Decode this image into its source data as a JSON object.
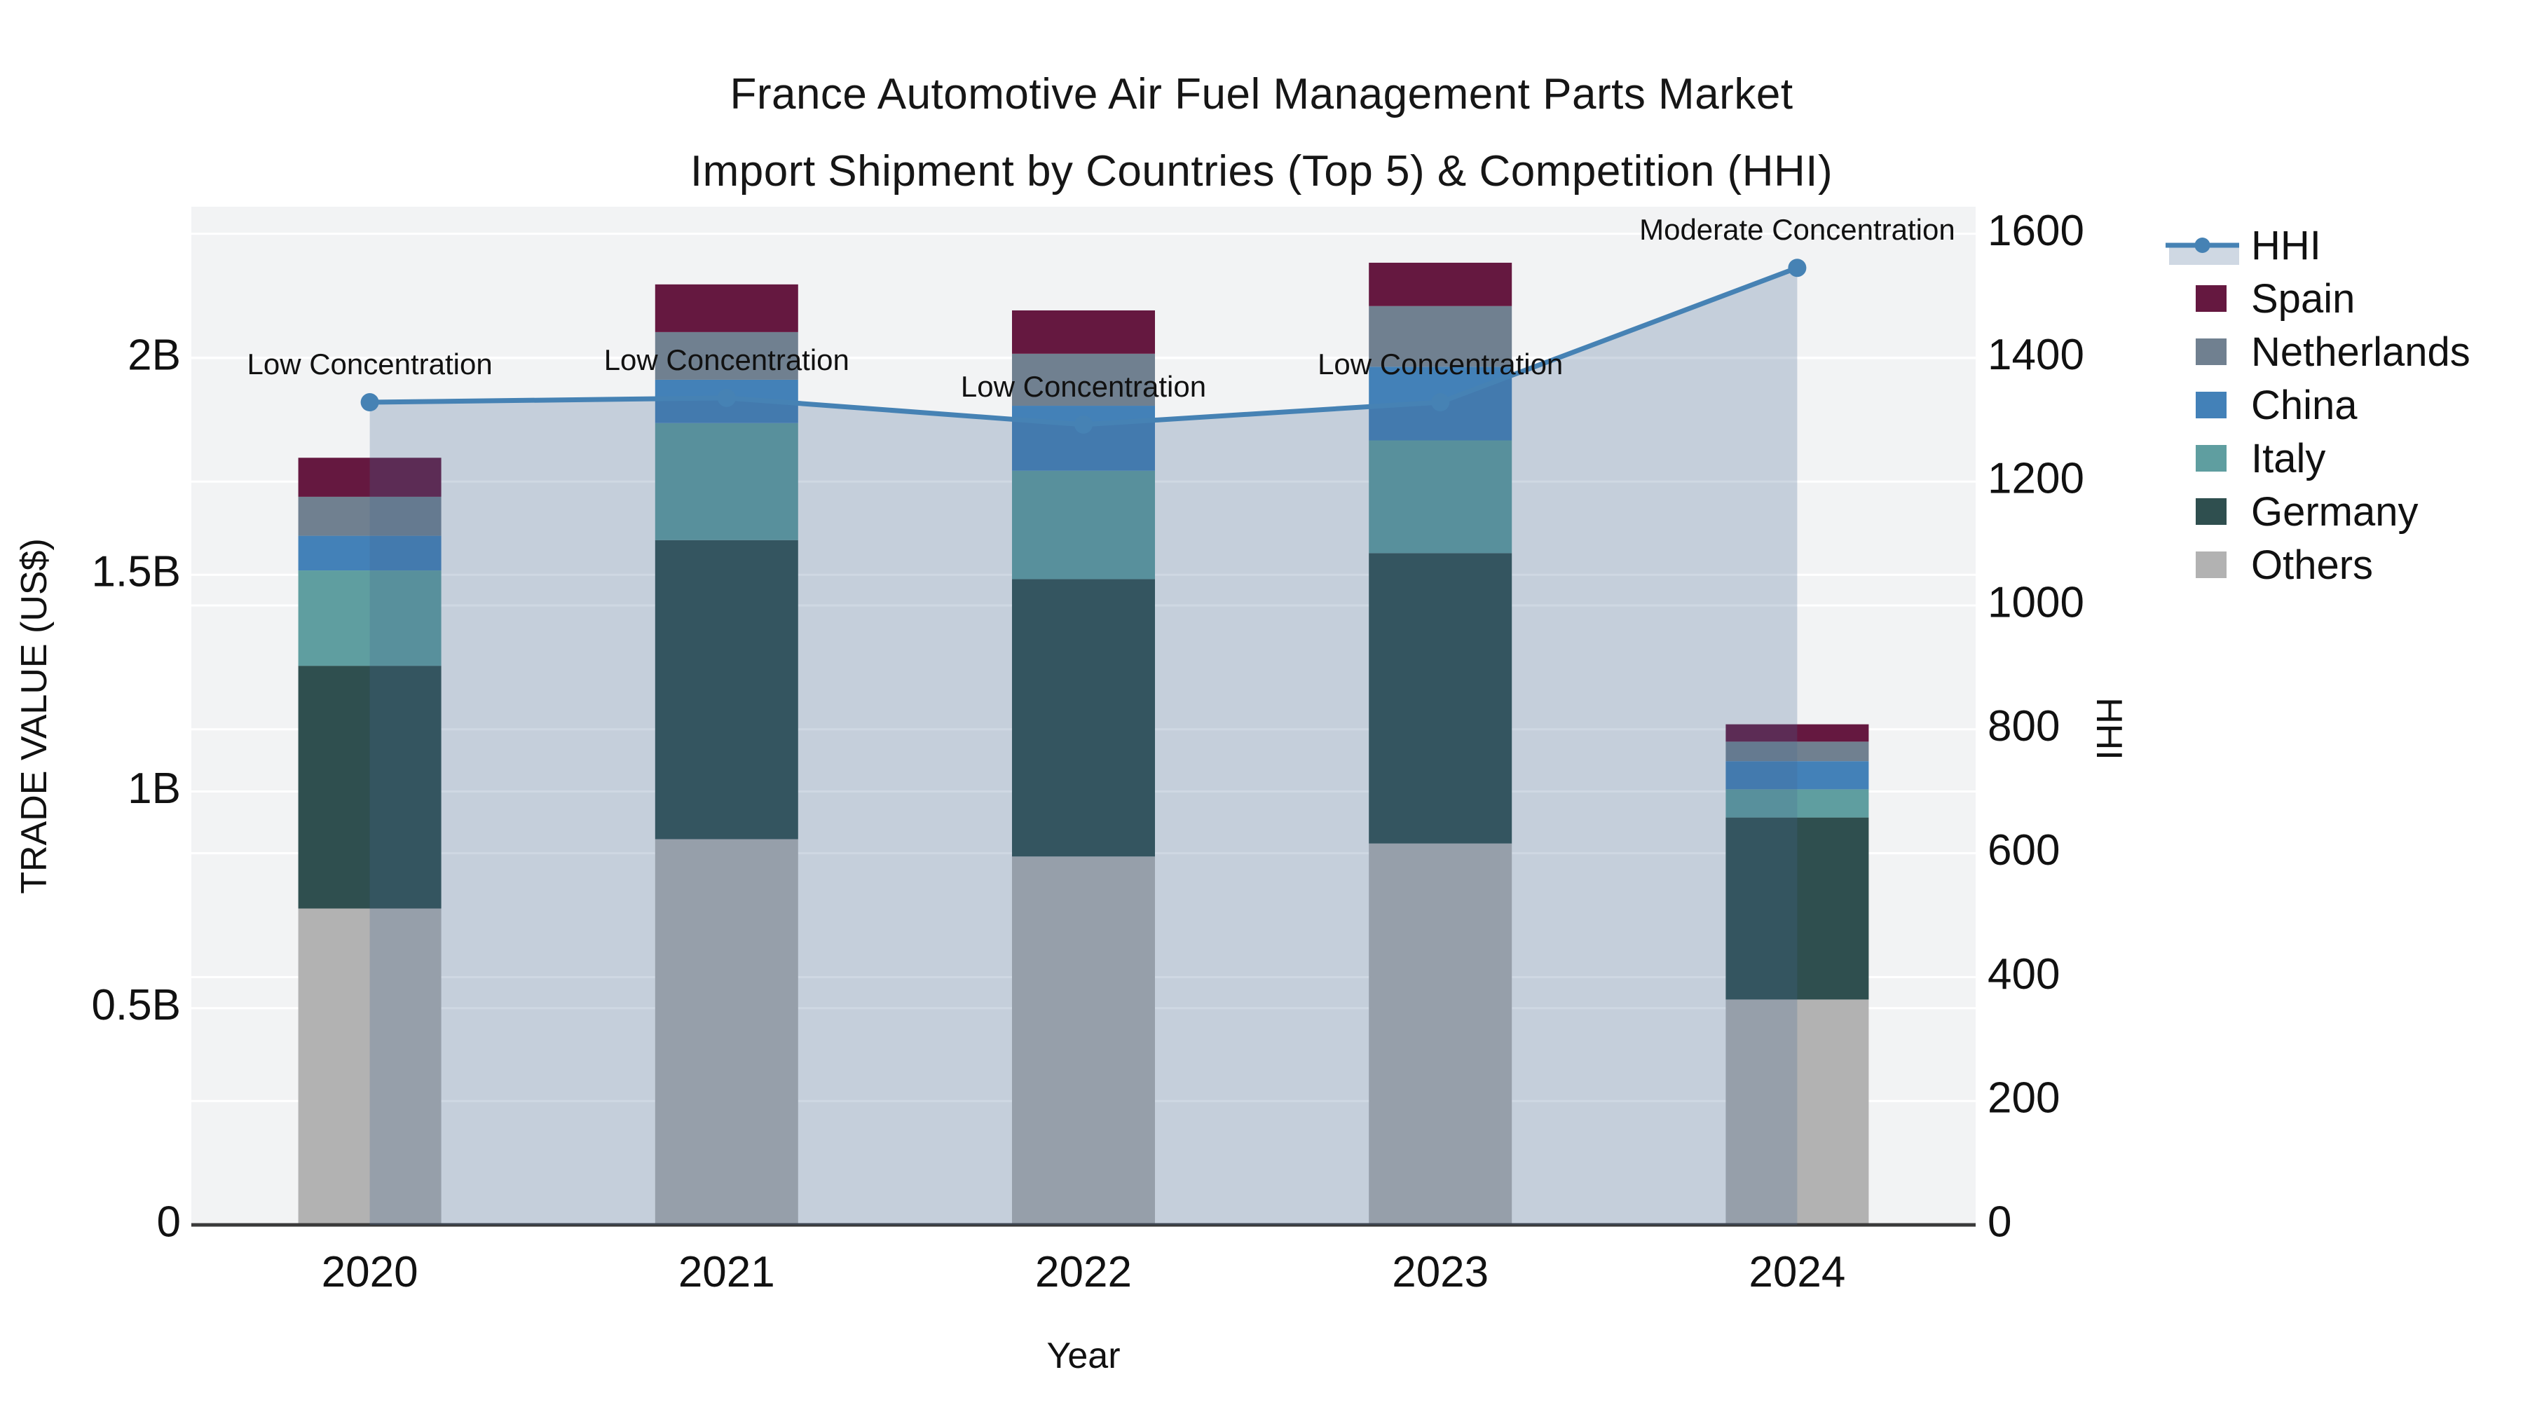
{
  "title": {
    "line1": "France Automotive Air Fuel Management Parts Market",
    "line2": "Import Shipment by Countries (Top 5) & Competition (HHI)"
  },
  "chart_data": {
    "type": "combo-stacked-bar-and-line-area",
    "categories": [
      "2020",
      "2021",
      "2022",
      "2023",
      "2024"
    ],
    "stack_order_bottom_to_top": [
      "Others",
      "Germany",
      "Italy",
      "China",
      "Netherlands",
      "Spain"
    ],
    "series": [
      {
        "name": "Spain",
        "color": "#651840",
        "values_B": [
          0.09,
          0.11,
          0.1,
          0.1,
          0.04
        ]
      },
      {
        "name": "Netherlands",
        "color": "#708090",
        "values_B": [
          0.09,
          0.11,
          0.12,
          0.14,
          0.045
        ]
      },
      {
        "name": "China",
        "color": "#4381b8",
        "values_B": [
          0.08,
          0.1,
          0.15,
          0.17,
          0.065
        ]
      },
      {
        "name": "Italy",
        "color": "#5f9ea0",
        "values_B": [
          0.22,
          0.27,
          0.25,
          0.26,
          0.065
        ]
      },
      {
        "name": "Germany",
        "color": "#2f4f4f",
        "values_B": [
          0.56,
          0.69,
          0.64,
          0.67,
          0.42
        ]
      },
      {
        "name": "Others",
        "color": "#b2b2b2",
        "values_B": [
          0.73,
          0.89,
          0.85,
          0.88,
          0.52
        ]
      }
    ],
    "totals_B": [
      1.77,
      2.17,
      2.11,
      2.22,
      1.16
    ],
    "hhi": {
      "name": "HHI",
      "line_color": "#4682b4",
      "area_fill": "rgba(70,105,145,0.26)",
      "values": [
        1328,
        1335,
        1292,
        1328,
        1545
      ]
    },
    "annotations": [
      {
        "category": "2020",
        "text": "Low Concentration"
      },
      {
        "category": "2021",
        "text": "Low Concentration"
      },
      {
        "category": "2022",
        "text": "Low Concentration"
      },
      {
        "category": "2023",
        "text": "Low Concentration"
      },
      {
        "category": "2024",
        "text": "Moderate Concentration"
      }
    ],
    "x_axis": {
      "label": "Year",
      "tick_labels": [
        "2020",
        "2021",
        "2022",
        "2023",
        "2024"
      ]
    },
    "left_axis": {
      "label": "TRADE VALUE (US$)",
      "tick_labels": [
        "0",
        "0.5B",
        "1B",
        "1.5B",
        "2B"
      ],
      "tick_values_B": [
        0,
        0.5,
        1,
        1.5,
        2
      ],
      "range_B": [
        0,
        2.35
      ],
      "grid": true
    },
    "right_axis": {
      "label": "HHI",
      "tick_labels": [
        "0",
        "200",
        "400",
        "600",
        "800",
        "1000",
        "1200",
        "1400",
        "1600"
      ],
      "tick_values": [
        0,
        200,
        400,
        600,
        800,
        1000,
        1200,
        1400,
        1600
      ],
      "range": [
        0,
        1644
      ],
      "grid": true
    },
    "legend": {
      "position": "right-outside-top",
      "entries": [
        {
          "label": "HHI",
          "type": "line-area",
          "color": "#4682b4"
        },
        {
          "label": "Spain",
          "type": "patch",
          "color": "#651840"
        },
        {
          "label": "Netherlands",
          "type": "patch",
          "color": "#708090"
        },
        {
          "label": "China",
          "type": "patch",
          "color": "#4381b8"
        },
        {
          "label": "Italy",
          "type": "patch",
          "color": "#5f9ea0"
        },
        {
          "label": "Germany",
          "type": "patch",
          "color": "#2f4f4f"
        },
        {
          "label": "Others",
          "type": "patch",
          "color": "#b2b2b2"
        }
      ]
    },
    "style": {
      "plot_bg": "#f2f3f4",
      "grid_color": "#ffffff",
      "baseline_color": "#3a3a3a",
      "text_color": "#111111"
    }
  }
}
